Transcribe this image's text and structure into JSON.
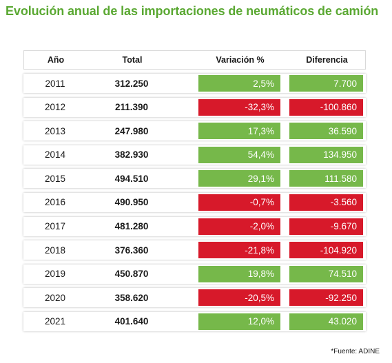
{
  "title": "Evolución anual de las importaciones de neumáticos de camión",
  "headers": {
    "year": "Año",
    "total": "Total",
    "variation": "Variación %",
    "difference": "Diferencia"
  },
  "colors": {
    "positive": "#76b84a",
    "negative": "#d7192a",
    "title": "#5aa832"
  },
  "rows": [
    {
      "year": "2011",
      "total": "312.250",
      "variation": "2,5%",
      "difference": "7.700",
      "trend": "positive"
    },
    {
      "year": "2012",
      "total": "211.390",
      "variation": "-32,3%",
      "difference": "-100.860",
      "trend": "negative"
    },
    {
      "year": "2013",
      "total": "247.980",
      "variation": "17,3%",
      "difference": "36.590",
      "trend": "positive"
    },
    {
      "year": "2014",
      "total": "382.930",
      "variation": "54,4%",
      "difference": "134.950",
      "trend": "positive"
    },
    {
      "year": "2015",
      "total": "494.510",
      "variation": "29,1%",
      "difference": "111.580",
      "trend": "positive"
    },
    {
      "year": "2016",
      "total": "490.950",
      "variation": "-0,7%",
      "difference": "-3.560",
      "trend": "negative"
    },
    {
      "year": "2017",
      "total": "481.280",
      "variation": "-2,0%",
      "difference": "-9.670",
      "trend": "negative"
    },
    {
      "year": "2018",
      "total": "376.360",
      "variation": "-21,8%",
      "difference": "-104.920",
      "trend": "negative"
    },
    {
      "year": "2019",
      "total": "450.870",
      "variation": "19,8%",
      "difference": "74.510",
      "trend": "positive"
    },
    {
      "year": "2020",
      "total": "358.620",
      "variation": "-20,5%",
      "difference": "-92.250",
      "trend": "negative"
    },
    {
      "year": "2021",
      "total": "401.640",
      "variation": "12,0%",
      "difference": "43.020",
      "trend": "positive"
    }
  ],
  "source": "*Fuente: ADINE"
}
